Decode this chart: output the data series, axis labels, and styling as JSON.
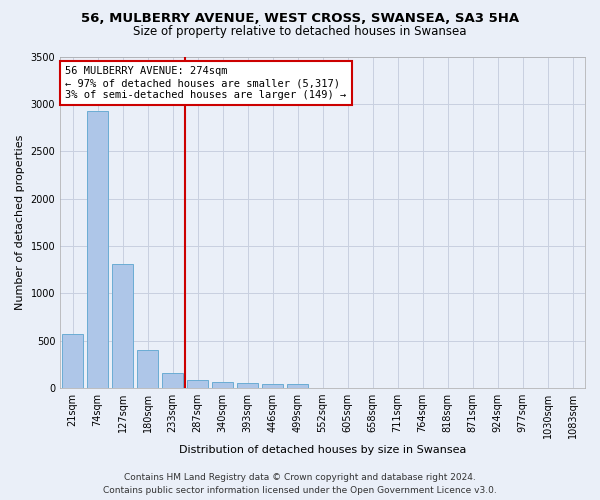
{
  "title": "56, MULBERRY AVENUE, WEST CROSS, SWANSEA, SA3 5HA",
  "subtitle": "Size of property relative to detached houses in Swansea",
  "xlabel": "Distribution of detached houses by size in Swansea",
  "ylabel": "Number of detached properties",
  "categories": [
    "21sqm",
    "74sqm",
    "127sqm",
    "180sqm",
    "233sqm",
    "287sqm",
    "340sqm",
    "393sqm",
    "446sqm",
    "499sqm",
    "552sqm",
    "605sqm",
    "658sqm",
    "711sqm",
    "764sqm",
    "818sqm",
    "871sqm",
    "924sqm",
    "977sqm",
    "1030sqm",
    "1083sqm"
  ],
  "values": [
    570,
    2920,
    1310,
    400,
    160,
    80,
    60,
    55,
    45,
    40,
    0,
    0,
    0,
    0,
    0,
    0,
    0,
    0,
    0,
    0,
    0
  ],
  "bar_color": "#aec6e8",
  "bar_edge_color": "#6aacd4",
  "vline_x": 4.5,
  "vline_color": "#cc0000",
  "annotation_line1": "56 MULBERRY AVENUE: 274sqm",
  "annotation_line2": "← 97% of detached houses are smaller (5,317)",
  "annotation_line3": "3% of semi-detached houses are larger (149) →",
  "annotation_box_color": "#cc0000",
  "ylim": [
    0,
    3500
  ],
  "yticks": [
    0,
    500,
    1000,
    1500,
    2000,
    2500,
    3000,
    3500
  ],
  "footer_line1": "Contains HM Land Registry data © Crown copyright and database right 2024.",
  "footer_line2": "Contains public sector information licensed under the Open Government Licence v3.0.",
  "title_fontsize": 9.5,
  "subtitle_fontsize": 8.5,
  "axis_fontsize": 8,
  "tick_fontsize": 7,
  "annotation_fontsize": 7.5,
  "footer_fontsize": 6.5,
  "background_color": "#eaeff8",
  "plot_bg_color": "#eaeff8",
  "grid_color": "#c8d0e0"
}
